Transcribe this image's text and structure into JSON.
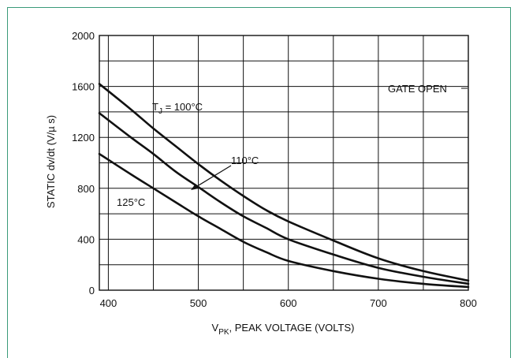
{
  "chart_data": {
    "type": "line",
    "xlabel": "V",
    "xlabel_sub": "PK",
    "xlabel_rest": ", PEAK VOLTAGE (VOLTS)",
    "ylabel": "STATIC dv/dt (V/µ s)",
    "xlim": [
      390,
      800
    ],
    "ylim": [
      0,
      2000
    ],
    "x_ticks": [
      400,
      500,
      600,
      700,
      800
    ],
    "y_ticks": [
      0,
      400,
      800,
      1200,
      1600,
      2000
    ],
    "x_grid_step": 50,
    "y_grid_step": 200,
    "grid": true,
    "annotations": {
      "gate_open": "GATE OPEN",
      "tj_prefix": "T",
      "tj_sub": "J",
      "tj_rest": " = 100°C",
      "t110": "110°C",
      "t125": "125°C"
    },
    "series": [
      {
        "name": "T_J = 100°C",
        "x": [
          390,
          425,
          450,
          475,
          500,
          525,
          550,
          575,
          600,
          650,
          700,
          750,
          800
        ],
        "values": [
          1620,
          1420,
          1270,
          1130,
          990,
          860,
          740,
          630,
          540,
          390,
          250,
          150,
          75
        ]
      },
      {
        "name": "110°C",
        "x": [
          390,
          425,
          450,
          475,
          500,
          525,
          550,
          575,
          600,
          650,
          700,
          750,
          800
        ],
        "values": [
          1390,
          1200,
          1070,
          930,
          810,
          690,
          580,
          490,
          400,
          280,
          175,
          105,
          50
        ]
      },
      {
        "name": "125°C",
        "x": [
          390,
          425,
          450,
          475,
          500,
          525,
          550,
          575,
          600,
          650,
          700,
          750,
          800
        ],
        "values": [
          1070,
          910,
          800,
          690,
          580,
          480,
          380,
          300,
          230,
          150,
          90,
          50,
          25
        ]
      }
    ]
  }
}
